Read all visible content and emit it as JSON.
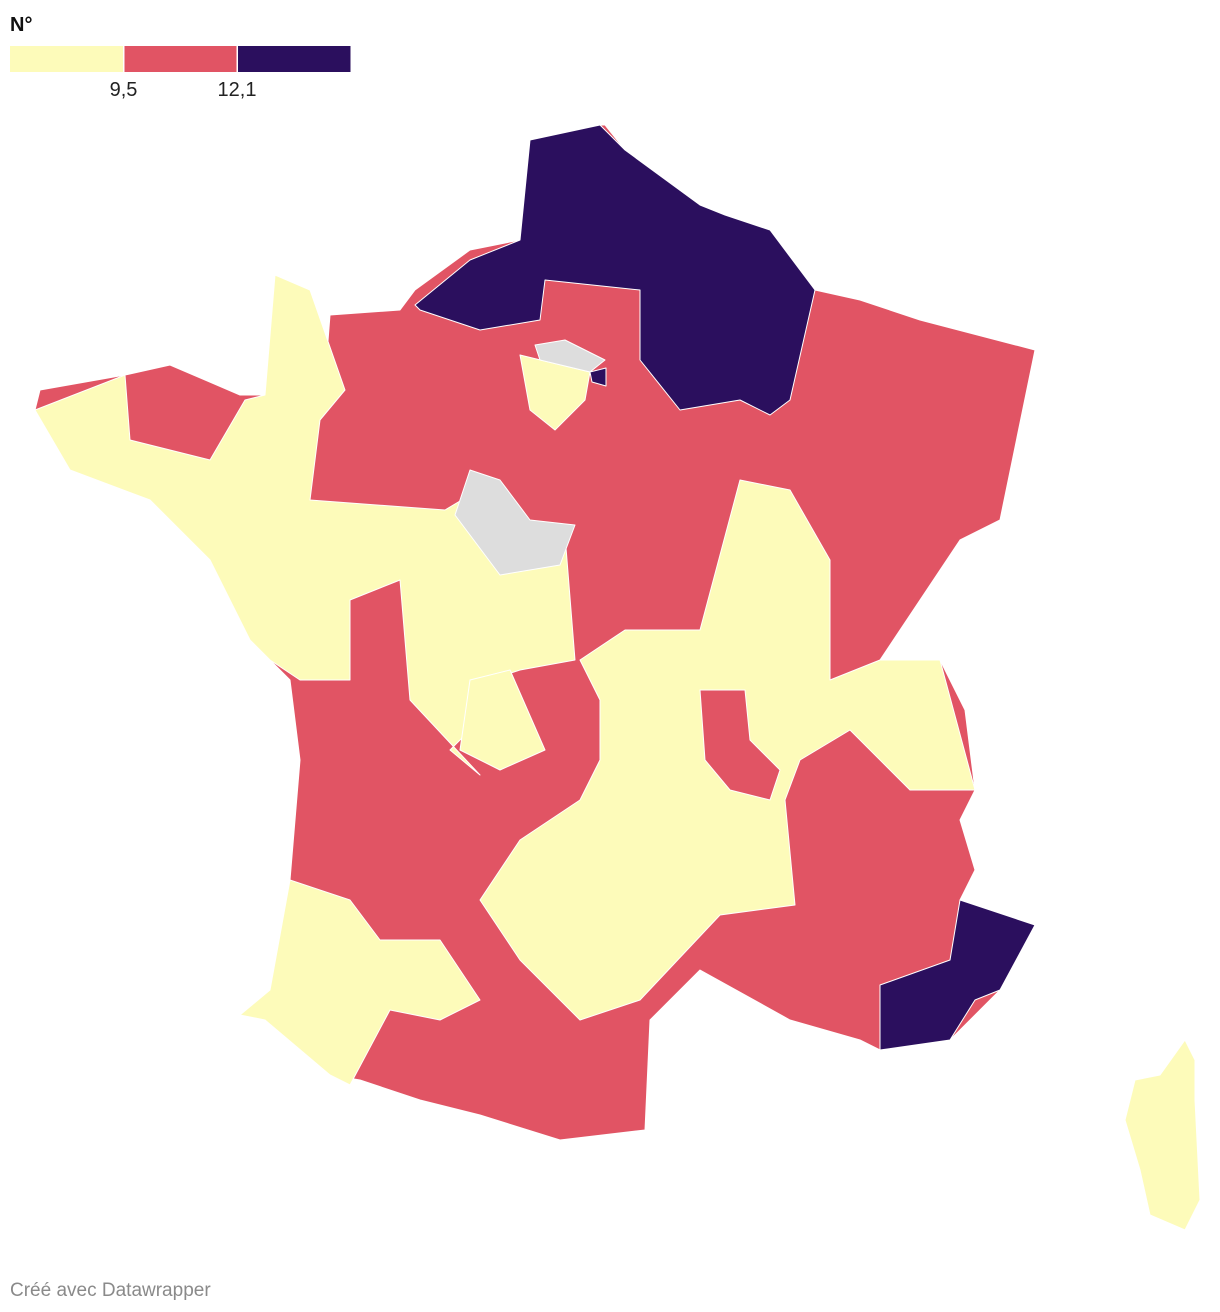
{
  "legend": {
    "title": "N°",
    "bins": [
      {
        "color": "#fdfbba"
      },
      {
        "color": "#e15464"
      },
      {
        "color": "#2b0f5e"
      }
    ],
    "thresholds": [
      {
        "value": 9.5,
        "label": "9,5"
      },
      {
        "value": 12.1,
        "label": "12,1"
      }
    ]
  },
  "footer": "Créé avec Datawrapper"
}
